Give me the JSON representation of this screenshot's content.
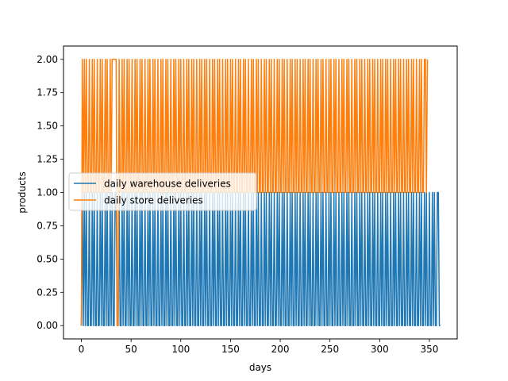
{
  "chart_data": {
    "type": "line",
    "xlabel": "days",
    "ylabel": "products",
    "xlim": [
      -17.95,
      377.95
    ],
    "ylim": [
      -0.1,
      2.1
    ],
    "grid": false,
    "legend_placement": "center-left",
    "x_ticks": [
      0,
      50,
      100,
      150,
      200,
      250,
      300,
      350
    ],
    "x_tick_labels": [
      "0",
      "50",
      "100",
      "150",
      "200",
      "250",
      "300",
      "350"
    ],
    "y_ticks": [
      0,
      0.25,
      0.5,
      0.75,
      1,
      1.25,
      1.5,
      1.75,
      2
    ],
    "y_tick_labels": [
      "0.00",
      "0.25",
      "0.50",
      "0.75",
      "1.00",
      "1.25",
      "1.50",
      "1.75",
      "2.00"
    ],
    "x_range": [
      0,
      359
    ],
    "series": [
      {
        "name": "daily warehouse deliveries",
        "color": "#1f77b4",
        "values": [
          0,
          1,
          0,
          1,
          0,
          1,
          0,
          0,
          1,
          0,
          0,
          1,
          0,
          1,
          0,
          0,
          1,
          0,
          0,
          1,
          0,
          1,
          0,
          0,
          1,
          0,
          1,
          0,
          0,
          1,
          0,
          1,
          0,
          0,
          1,
          1,
          0,
          0,
          1,
          0,
          0,
          1,
          0,
          1,
          0,
          0,
          1,
          0,
          1,
          0,
          0,
          1,
          0,
          0,
          1,
          0,
          1,
          0,
          0,
          1,
          0,
          1,
          0,
          0,
          1,
          0,
          0,
          1,
          0,
          1,
          0,
          0,
          1,
          0,
          1,
          0,
          0,
          1,
          0,
          0,
          1,
          0,
          1,
          0,
          0,
          1,
          0,
          1,
          0,
          0,
          1,
          0,
          0,
          1,
          0,
          1,
          0,
          0,
          1,
          0,
          1,
          0,
          0,
          1,
          0,
          0,
          1,
          0,
          1,
          0,
          0,
          1,
          0,
          1,
          0,
          0,
          1,
          0,
          0,
          1,
          0,
          1,
          0,
          0,
          1,
          0,
          1,
          0,
          0,
          1,
          0,
          0,
          1,
          0,
          1,
          0,
          0,
          1,
          0,
          1,
          0,
          0,
          1,
          0,
          0,
          1,
          0,
          1,
          0,
          0,
          1,
          0,
          1,
          0,
          0,
          1,
          0,
          0,
          1,
          0,
          1,
          0,
          0,
          1,
          0,
          1,
          0,
          0,
          1,
          0,
          0,
          1,
          0,
          1,
          0,
          0,
          1,
          0,
          1,
          0,
          0,
          1,
          0,
          0,
          1,
          0,
          1,
          0,
          0,
          1,
          0,
          1,
          0,
          0,
          1,
          0,
          0,
          1,
          0,
          1,
          0,
          0,
          1,
          0,
          1,
          0,
          0,
          1,
          0,
          0,
          1,
          0,
          1,
          0,
          0,
          1,
          0,
          1,
          0,
          0,
          1,
          0,
          0,
          1,
          0,
          1,
          0,
          0,
          1,
          0,
          1,
          0,
          0,
          1,
          0,
          0,
          1,
          0,
          1,
          0,
          0,
          1,
          0,
          1,
          0,
          0,
          1,
          0,
          0,
          1,
          0,
          1,
          0,
          0,
          1,
          0,
          1,
          0,
          0,
          1,
          0,
          0,
          1,
          0,
          1,
          0,
          0,
          1,
          0,
          1,
          0,
          0,
          1,
          0,
          0,
          1,
          0,
          1,
          0,
          0,
          1,
          0,
          1,
          0,
          0,
          1,
          0,
          0,
          1,
          0,
          1,
          0,
          0,
          1,
          0,
          1,
          0,
          0,
          1,
          0,
          0,
          1,
          0,
          1,
          0,
          0,
          1,
          0,
          1,
          0,
          0,
          1,
          0,
          0,
          1,
          0,
          1,
          0,
          0,
          1,
          0,
          1,
          0,
          0,
          1,
          0,
          0,
          1,
          0,
          1,
          0,
          0,
          1,
          0,
          1,
          0,
          0,
          1,
          0,
          0,
          1,
          0,
          1,
          0,
          0,
          1,
          0,
          1,
          0,
          0,
          1,
          0,
          0,
          1,
          0,
          1,
          0,
          0,
          1,
          1,
          0,
          0
        ]
      },
      {
        "name": "daily store deliveries",
        "color": "#ff7f0e",
        "values": [
          0,
          2,
          1,
          2,
          1,
          2,
          1,
          1,
          2,
          1,
          1,
          2,
          1,
          2,
          1,
          1,
          2,
          1,
          1,
          2,
          1,
          2,
          1,
          1,
          2,
          1,
          2,
          1,
          1,
          2,
          1,
          2,
          2,
          2,
          2,
          2,
          0,
          0,
          2,
          1,
          1,
          2,
          1,
          2,
          1,
          1,
          2,
          1,
          2,
          1,
          1,
          2,
          1,
          1,
          2,
          1,
          2,
          1,
          1,
          2,
          1,
          2,
          1,
          1,
          2,
          1,
          1,
          2,
          1,
          2,
          1,
          1,
          2,
          1,
          2,
          1,
          1,
          2,
          1,
          1,
          2,
          1,
          2,
          1,
          1,
          2,
          1,
          2,
          1,
          1,
          2,
          1,
          1,
          2,
          1,
          2,
          1,
          1,
          2,
          1,
          2,
          1,
          1,
          2,
          1,
          1,
          2,
          1,
          2,
          1,
          1,
          2,
          1,
          2,
          1,
          1,
          2,
          1,
          1,
          2,
          1,
          2,
          1,
          1,
          2,
          1,
          2,
          1,
          1,
          2,
          1,
          1,
          2,
          1,
          2,
          1,
          1,
          2,
          1,
          2,
          1,
          1,
          2,
          1,
          1,
          2,
          1,
          2,
          1,
          1,
          2,
          1,
          2,
          1,
          1,
          2,
          1,
          1,
          2,
          1,
          2,
          1,
          1,
          2,
          1,
          2,
          1,
          1,
          2,
          1,
          1,
          2,
          1,
          2,
          1,
          1,
          2,
          1,
          2,
          1,
          1,
          2,
          1,
          1,
          2,
          1,
          2,
          1,
          1,
          2,
          1,
          2,
          1,
          1,
          2,
          1,
          1,
          2,
          1,
          2,
          1,
          1,
          2,
          1,
          2,
          1,
          1,
          2,
          1,
          1,
          2,
          1,
          2,
          1,
          1,
          2,
          1,
          2,
          1,
          1,
          2,
          1,
          1,
          2,
          1,
          2,
          1,
          1,
          2,
          1,
          2,
          1,
          1,
          2,
          1,
          1,
          2,
          1,
          2,
          1,
          1,
          2,
          1,
          2,
          1,
          1,
          2,
          1,
          1,
          2,
          1,
          2,
          1,
          1,
          2,
          1,
          2,
          1,
          1,
          2,
          1,
          1,
          2,
          1,
          2,
          1,
          1,
          2,
          1,
          2,
          1,
          1,
          2,
          1,
          1,
          2,
          1,
          2,
          1,
          1,
          2,
          1,
          2,
          1,
          1,
          2,
          1,
          1,
          2,
          1,
          2,
          1,
          1,
          2,
          1,
          2,
          1,
          1,
          2,
          1,
          1,
          2,
          1,
          2,
          1,
          1,
          2,
          1,
          2,
          1,
          1,
          2,
          1,
          1,
          2,
          1,
          2,
          1,
          1,
          2,
          1,
          2,
          1,
          1,
          2,
          1,
          1,
          2,
          1,
          2,
          1,
          1,
          2,
          1,
          2,
          1,
          1,
          2,
          1,
          1,
          2,
          1,
          2,
          1,
          1,
          2,
          2,
          1,
          2
        ]
      }
    ]
  }
}
